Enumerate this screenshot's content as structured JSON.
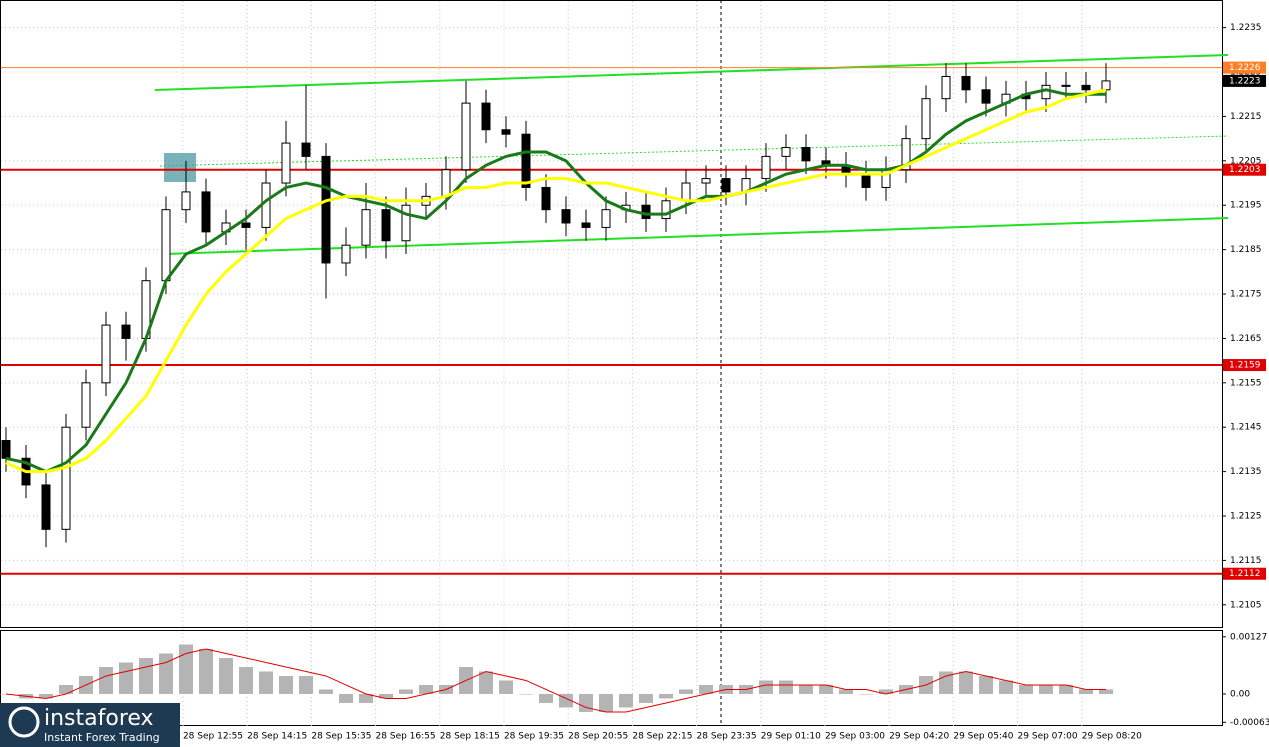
{
  "chart_data": [
    {
      "type": "candlestick",
      "open": [
        1.2142,
        1.2138,
        1.2132,
        1.2122,
        1.2145,
        1.2155,
        1.2168,
        1.2165,
        1.2178,
        1.2194,
        1.2198,
        1.2189,
        1.2191,
        1.219,
        1.22,
        1.2209,
        1.2206,
        1.2182,
        1.2186,
        1.2194,
        1.2187,
        1.2195,
        1.2197,
        1.2203,
        1.2218,
        1.2212,
        1.2211,
        1.2199,
        1.2194,
        1.2191,
        1.219,
        1.2194,
        1.2195,
        1.2192,
        1.2196,
        1.22,
        1.2201,
        1.2198,
        1.2201,
        1.2206,
        1.2208,
        1.2205,
        1.2204,
        1.2202,
        1.2199,
        1.2203,
        1.221,
        1.2219,
        1.2224,
        1.2221,
        1.2218,
        1.222,
        1.2219,
        1.2222,
        1.2222,
        1.2221
      ],
      "high": [
        1.2145,
        1.2141,
        1.2135,
        1.2148,
        1.2158,
        1.2171,
        1.2171,
        1.2181,
        1.2197,
        1.2205,
        1.2201,
        1.2194,
        1.2194,
        1.2203,
        1.2214,
        1.2222,
        1.2209,
        1.219,
        1.22,
        1.2197,
        1.2199,
        1.22,
        1.2206,
        1.2223,
        1.2221,
        1.2215,
        1.2214,
        1.2202,
        1.2197,
        1.2194,
        1.2197,
        1.2198,
        1.2198,
        1.2199,
        1.2203,
        1.2204,
        1.2204,
        1.2204,
        1.2209,
        1.2211,
        1.2211,
        1.2208,
        1.2207,
        1.2205,
        1.2206,
        1.2213,
        1.2222,
        1.2227,
        1.2227,
        1.2224,
        1.2223,
        1.2223,
        1.2225,
        1.2225,
        1.2225,
        1.2227
      ],
      "low": [
        1.2135,
        1.2129,
        1.2118,
        1.2119,
        1.2142,
        1.2152,
        1.216,
        1.2162,
        1.2175,
        1.2191,
        1.2186,
        1.2186,
        1.2185,
        1.2187,
        1.2197,
        1.2203,
        1.2174,
        1.2179,
        1.2183,
        1.2183,
        1.2184,
        1.2192,
        1.2194,
        1.22,
        1.2209,
        1.2208,
        1.2196,
        1.2191,
        1.2188,
        1.2187,
        1.2187,
        1.2191,
        1.2189,
        1.2189,
        1.2193,
        1.2197,
        1.2195,
        1.2195,
        1.2198,
        1.2203,
        1.2202,
        1.2201,
        1.2199,
        1.2196,
        1.2196,
        1.22,
        1.2207,
        1.2216,
        1.2218,
        1.2215,
        1.2215,
        1.2216,
        1.2216,
        1.2219,
        1.2218,
        1.2218
      ],
      "close": [
        1.2138,
        1.2132,
        1.2122,
        1.2145,
        1.2155,
        1.2168,
        1.2165,
        1.2178,
        1.2194,
        1.2198,
        1.2189,
        1.2191,
        1.219,
        1.22,
        1.2209,
        1.2206,
        1.2182,
        1.2186,
        1.2194,
        1.2187,
        1.2195,
        1.2197,
        1.2203,
        1.2218,
        1.2212,
        1.2211,
        1.2199,
        1.2194,
        1.2191,
        1.219,
        1.2194,
        1.2195,
        1.2192,
        1.2196,
        1.22,
        1.2201,
        1.2198,
        1.2201,
        1.2206,
        1.2208,
        1.2205,
        1.2204,
        1.2202,
        1.2199,
        1.2203,
        1.221,
        1.2219,
        1.2224,
        1.2221,
        1.2218,
        1.222,
        1.2219,
        1.2222,
        1.2222,
        1.2221,
        1.2223
      ],
      "series": [
        {
          "color": "#1a7a1a",
          "values": [
            1.2138,
            1.2137,
            1.2135,
            1.2137,
            1.2141,
            1.2148,
            1.2155,
            1.2165,
            1.2178,
            1.2184,
            1.2186,
            1.2189,
            1.2192,
            1.2196,
            1.2199,
            1.22,
            1.2199,
            1.2197,
            1.2196,
            1.2195,
            1.2193,
            1.2192,
            1.2196,
            1.2201,
            1.2204,
            1.2206,
            1.2207,
            1.2207,
            1.2205,
            1.22,
            1.2196,
            1.2194,
            1.2193,
            1.2193,
            1.2195,
            1.2197,
            1.2197,
            1.2198,
            1.22,
            1.2202,
            1.2203,
            1.2204,
            1.2204,
            1.2203,
            1.2203,
            1.2204,
            1.2207,
            1.2211,
            1.2214,
            1.2216,
            1.2218,
            1.222,
            1.2221,
            1.222,
            1.222,
            1.222
          ]
        },
        {
          "color": "#ffff00",
          "values": [
            1.2137,
            1.2135,
            1.2135,
            1.2136,
            1.2138,
            1.2142,
            1.2147,
            1.2152,
            1.216,
            1.2168,
            1.2175,
            1.218,
            1.2184,
            1.2188,
            1.2192,
            1.2194,
            1.2196,
            1.2197,
            1.2197,
            1.2196,
            1.2196,
            1.2196,
            1.2197,
            1.2199,
            1.2199,
            1.22,
            1.22,
            1.2201,
            1.2201,
            1.22,
            1.22,
            1.2199,
            1.2198,
            1.2197,
            1.2196,
            1.2196,
            1.2197,
            1.2198,
            1.2199,
            1.22,
            1.2201,
            1.2202,
            1.2202,
            1.2202,
            1.2202,
            1.2204,
            1.2206,
            1.2208,
            1.221,
            1.2212,
            1.2214,
            1.2216,
            1.2217,
            1.2219,
            1.222,
            1.2221
          ]
        }
      ],
      "levels": [
        {
          "value": 1.2226,
          "color": "#ff7f27"
        },
        {
          "value": 1.2203,
          "color": "#e00000"
        },
        {
          "value": 1.2159,
          "color": "#e00000"
        },
        {
          "value": 1.2112,
          "color": "#e00000"
        }
      ],
      "last_price": 1.2223,
      "ylim": [
        1.21,
        1.2241
      ],
      "yticks": [
        1.2105,
        1.2115,
        1.2125,
        1.2135,
        1.2145,
        1.2155,
        1.2165,
        1.2175,
        1.2185,
        1.2195,
        1.2205,
        1.2215,
        1.2225,
        1.2235
      ],
      "x_labels": [
        "28 Sep 12:55",
        "28 Sep 14:15",
        "28 Sep 15:35",
        "28 Sep 16:55",
        "28 Sep 18:15",
        "28 Sep 19:35",
        "28 Sep 20:55",
        "28 Sep 22:15",
        "28 Sep 23:35",
        "29 Sep 01:10",
        "29 Sep 03:00",
        "29 Sep 04:20",
        "29 Sep 05:40",
        "29 Sep 07:00",
        "29 Sep 08:20"
      ],
      "grid": true
    },
    {
      "type": "macd",
      "values": [
        0.0,
        -0.0001,
        -0.0001,
        0.0002,
        0.0004,
        0.0006,
        0.0007,
        0.0008,
        0.0009,
        0.0011,
        0.001,
        0.0008,
        0.0006,
        0.0005,
        0.0004,
        0.0004,
        0.0001,
        -0.0002,
        -0.0002,
        -0.0001,
        0.0001,
        0.0002,
        0.0002,
        0.0006,
        0.0005,
        0.0003,
        0.0,
        -0.0002,
        -0.0003,
        -0.0004,
        -0.0004,
        -0.0003,
        -0.0002,
        -0.0001,
        0.0001,
        0.0002,
        0.0002,
        0.0002,
        0.0003,
        0.0003,
        0.0002,
        0.0002,
        0.0001,
        0.0,
        0.0001,
        0.0002,
        0.0004,
        0.0005,
        0.0005,
        0.0004,
        0.0003,
        0.0002,
        0.0002,
        0.0002,
        0.0001,
        0.0001
      ],
      "color": "#b4b4b4",
      "signal": [
        0.0,
        -5e-05,
        -0.0001,
        0.0,
        0.0002,
        0.0004,
        0.0005,
        0.0006,
        0.0007,
        0.0009,
        0.001,
        0.0009,
        0.0008,
        0.0007,
        0.0006,
        0.0005,
        0.0004,
        0.0002,
        0.0,
        -0.0001,
        -0.0001,
        0.0,
        0.0001,
        0.0003,
        0.0005,
        0.0004,
        0.0003,
        0.0001,
        -0.0001,
        -0.0003,
        -0.0004,
        -0.0004,
        -0.0003,
        -0.0002,
        -0.0001,
        0.0,
        0.0001,
        0.0001,
        0.0002,
        0.0002,
        0.0002,
        0.0002,
        0.0001,
        0.0001,
        0.0,
        0.0001,
        0.0002,
        0.0004,
        0.0005,
        0.0004,
        0.0003,
        0.0002,
        0.0002,
        0.0002,
        0.0001,
        0.0001
      ],
      "signal_color": "#e00000",
      "ylim": [
        -0.00069,
        0.0014
      ],
      "yticks": [
        0.00127,
        {
          "value": 0,
          "label": "0.00"
        },
        -0.00063
      ]
    }
  ],
  "logo": {
    "brand": "instaforex",
    "tagline": "Instant Forex Trading"
  }
}
